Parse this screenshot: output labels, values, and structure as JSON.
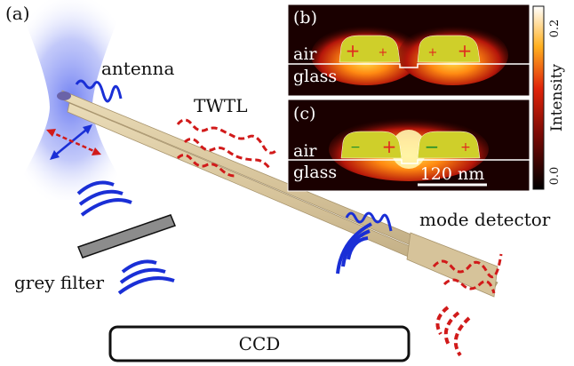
{
  "panel_labels": {
    "a": "(a)",
    "b": "(b)",
    "c": "(c)"
  },
  "labels": {
    "antenna": "antenna",
    "twtl": "TWTL",
    "mode_detector": "mode detector",
    "grey_filter": "grey filter",
    "ccd": "CCD"
  },
  "inset": {
    "air": "air",
    "glass": "glass",
    "scale_bar": "120 nm",
    "colorbar_label": "Intensity",
    "colorbar_max": "0.2",
    "colorbar_min": "0.0",
    "b_charges": [
      "+",
      "+",
      "+",
      "+"
    ],
    "c_charges": [
      "−",
      "+",
      "−",
      "+"
    ]
  },
  "colors": {
    "wave_blue": "#1a2fd6",
    "wave_red": "#d11a1a",
    "rod": "#d9c8a0",
    "gold": "#cfcf2a",
    "charge_red": "#e0281e",
    "charge_green": "#1f8f2a"
  }
}
